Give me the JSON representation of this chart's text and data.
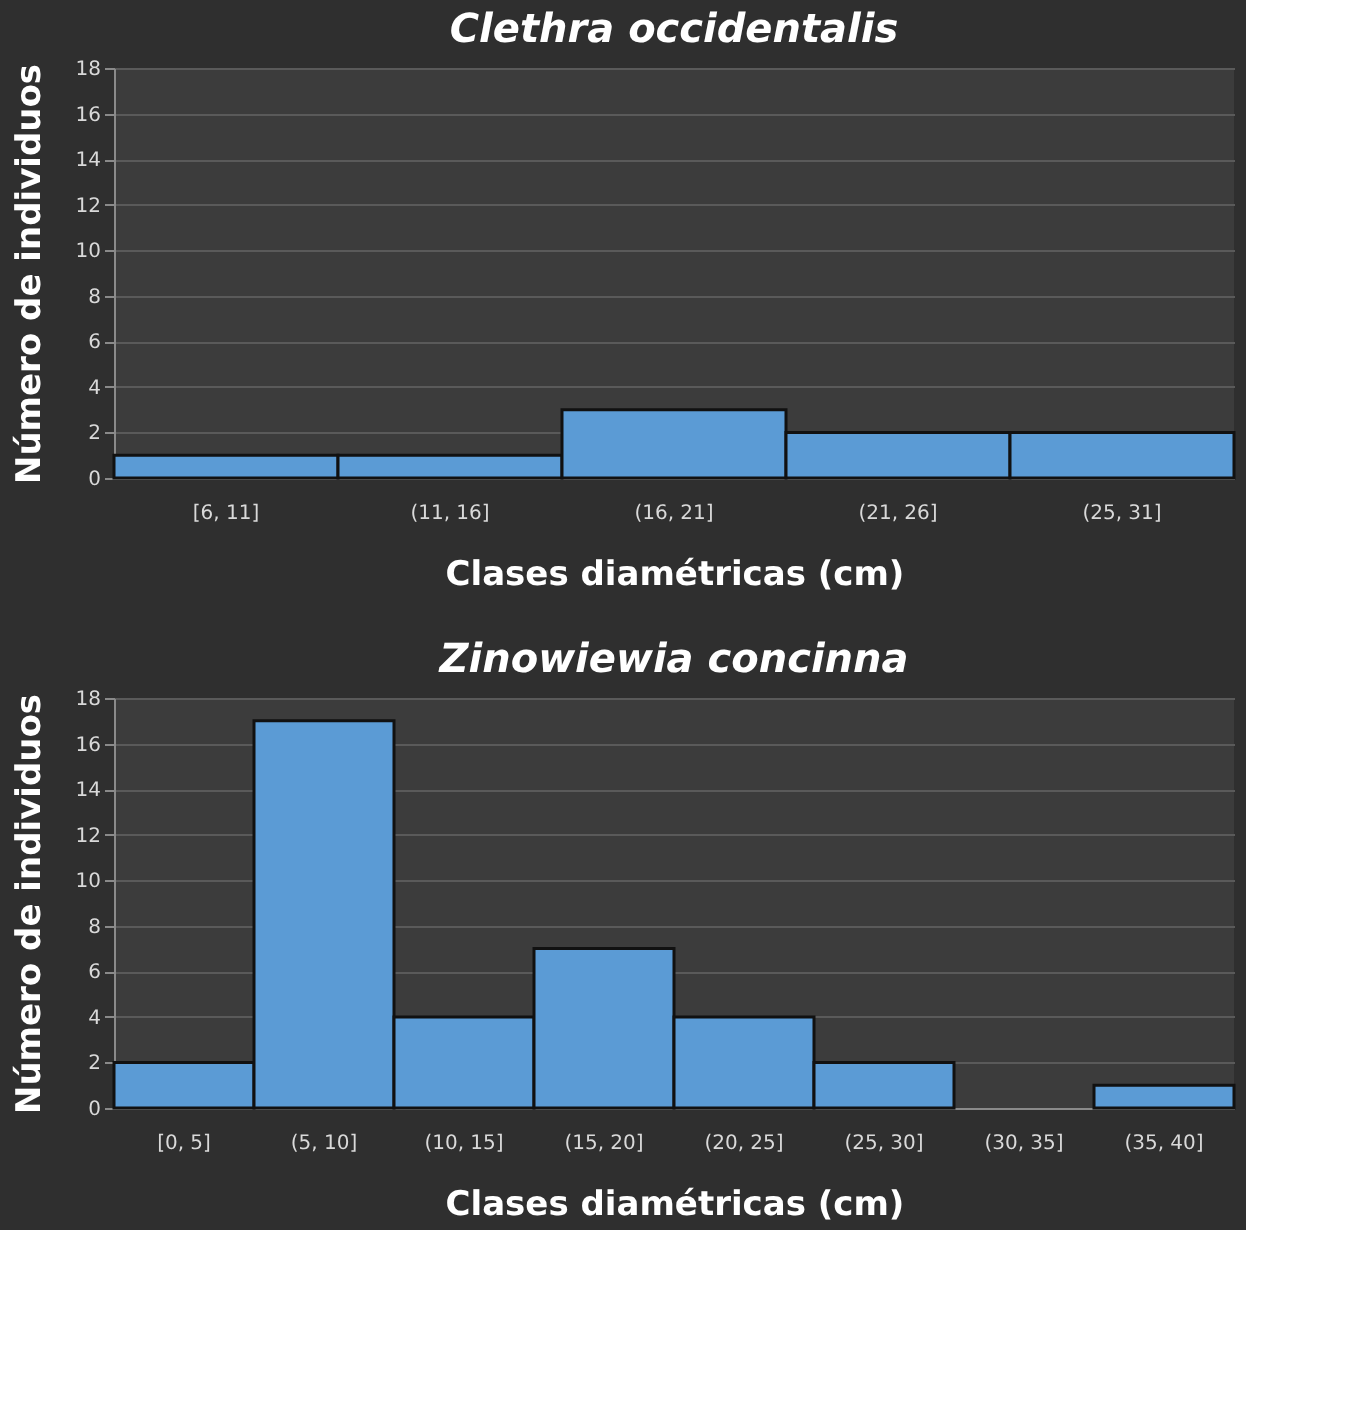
{
  "chart_data": [
    {
      "type": "bar",
      "title": "Clethra occidentalis",
      "xlabel": "Clases diamétricas (cm)",
      "ylabel": "Número de individuos",
      "categories": [
        "[6, 11]",
        "(11, 16]",
        "(16, 21]",
        "(21, 26]",
        "(25, 31]"
      ],
      "values": [
        1,
        1,
        3,
        2,
        2
      ],
      "color": "#5b9bd5",
      "ylim": [
        0,
        18
      ],
      "yticks": [
        0,
        2,
        4,
        6,
        8,
        10,
        12,
        14,
        16,
        18
      ],
      "grid": "y"
    },
    {
      "type": "bar",
      "title": "Zinowiewia concinna",
      "xlabel": "Clases diamétricas (cm)",
      "ylabel": "Número de individuos",
      "categories": [
        "[0, 5]",
        "(5, 10]",
        "(10, 15]",
        "(15, 20]",
        "(20, 25]",
        "(25, 30]",
        "(30, 35]",
        "(35, 40]"
      ],
      "values": [
        2,
        17,
        4,
        7,
        4,
        2,
        0,
        1
      ],
      "color": "#5b9bd5",
      "ylim": [
        0,
        18
      ],
      "yticks": [
        0,
        2,
        4,
        6,
        8,
        10,
        12,
        14,
        16,
        18
      ],
      "grid": "y"
    }
  ]
}
